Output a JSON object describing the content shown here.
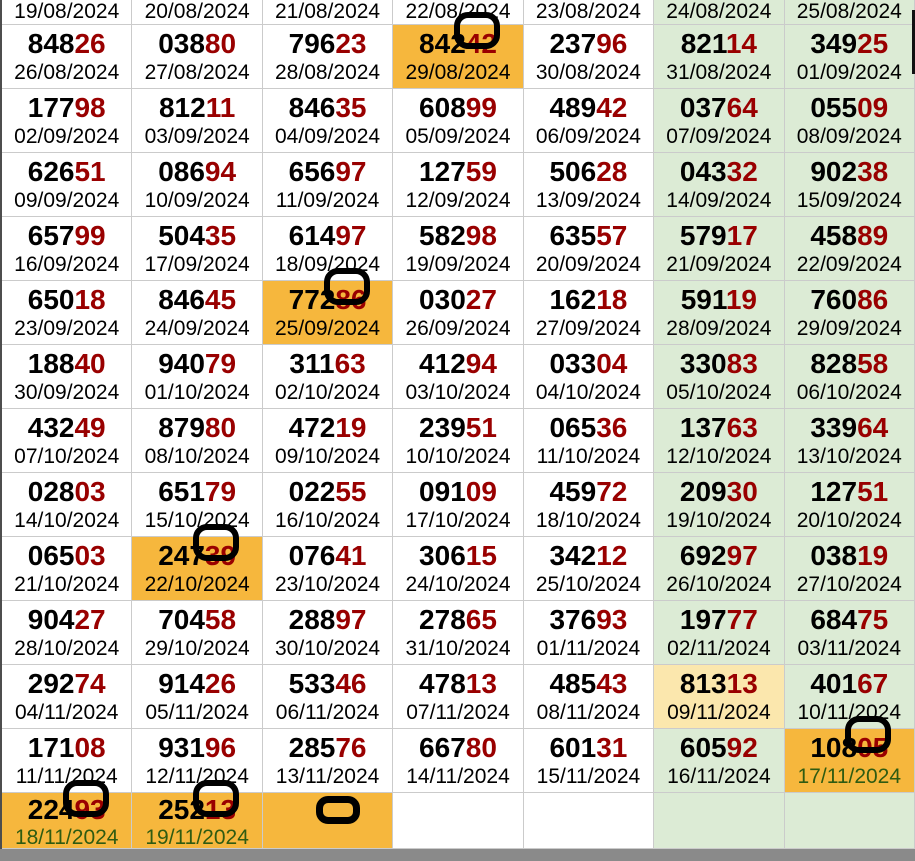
{
  "colors": {
    "orange_highlight": "#F6B73D",
    "weekend_green": "#DCEBD5",
    "yellow_highlight": "#FBE7AD",
    "number_black": "#000000",
    "number_maroon": "#990000",
    "grid_line": "#CBCBCB",
    "bottom_bar_gray": "#8A8A8A",
    "left_border_gray": "#4D4D4D",
    "date_dark_green": "#2F5B11"
  },
  "grid": {
    "top_row": {
      "cells": [
        {
          "date": "19/08/2024",
          "bg": "w"
        },
        {
          "date": "20/08/2024",
          "bg": "w"
        },
        {
          "date": "21/08/2024",
          "bg": "w"
        },
        {
          "date": "22/08/2024",
          "bg": "w"
        },
        {
          "date": "23/08/2024",
          "bg": "w"
        },
        {
          "date": "24/08/2024",
          "bg": "g"
        },
        {
          "date": "25/08/2024",
          "bg": "g"
        }
      ]
    },
    "rows": [
      {
        "cells": [
          {
            "num": "84826",
            "date": "26/08/2024",
            "bg": "w"
          },
          {
            "num": "03880",
            "date": "27/08/2024",
            "bg": "w"
          },
          {
            "num": "79623",
            "date": "28/08/2024",
            "bg": "w"
          },
          {
            "num": "84242",
            "date": "29/08/2024",
            "bg": "o",
            "ring": "digits"
          },
          {
            "num": "23796",
            "date": "30/08/2024",
            "bg": "w"
          },
          {
            "num": "82114",
            "date": "31/08/2024",
            "bg": "g"
          },
          {
            "num": "34925",
            "date": "01/09/2024",
            "bg": "g"
          }
        ]
      },
      {
        "cells": [
          {
            "num": "17798",
            "date": "02/09/2024",
            "bg": "w"
          },
          {
            "num": "81211",
            "date": "03/09/2024",
            "bg": "w"
          },
          {
            "num": "84635",
            "date": "04/09/2024",
            "bg": "w"
          },
          {
            "num": "60899",
            "date": "05/09/2024",
            "bg": "w"
          },
          {
            "num": "48942",
            "date": "06/09/2024",
            "bg": "w"
          },
          {
            "num": "03764",
            "date": "07/09/2024",
            "bg": "g"
          },
          {
            "num": "05509",
            "date": "08/09/2024",
            "bg": "g"
          }
        ]
      },
      {
        "cells": [
          {
            "num": "62651",
            "date": "09/09/2024",
            "bg": "w"
          },
          {
            "num": "08694",
            "date": "10/09/2024",
            "bg": "w"
          },
          {
            "num": "65697",
            "date": "11/09/2024",
            "bg": "w"
          },
          {
            "num": "12759",
            "date": "12/09/2024",
            "bg": "w"
          },
          {
            "num": "50628",
            "date": "13/09/2024",
            "bg": "w"
          },
          {
            "num": "04332",
            "date": "14/09/2024",
            "bg": "g"
          },
          {
            "num": "90238",
            "date": "15/09/2024",
            "bg": "g"
          }
        ]
      },
      {
        "cells": [
          {
            "num": "65799",
            "date": "16/09/2024",
            "bg": "w"
          },
          {
            "num": "50435",
            "date": "17/09/2024",
            "bg": "w"
          },
          {
            "num": "61497",
            "date": "18/09/2024",
            "bg": "w"
          },
          {
            "num": "58298",
            "date": "19/09/2024",
            "bg": "w"
          },
          {
            "num": "63557",
            "date": "20/09/2024",
            "bg": "w"
          },
          {
            "num": "57917",
            "date": "21/09/2024",
            "bg": "g"
          },
          {
            "num": "45889",
            "date": "22/09/2024",
            "bg": "g"
          }
        ]
      },
      {
        "cells": [
          {
            "num": "65018",
            "date": "23/09/2024",
            "bg": "w"
          },
          {
            "num": "84645",
            "date": "24/09/2024",
            "bg": "w"
          },
          {
            "num": "77286",
            "date": "25/09/2024",
            "bg": "o",
            "ring": "digits"
          },
          {
            "num": "03027",
            "date": "26/09/2024",
            "bg": "w"
          },
          {
            "num": "16218",
            "date": "27/09/2024",
            "bg": "w"
          },
          {
            "num": "59119",
            "date": "28/09/2024",
            "bg": "g"
          },
          {
            "num": "76086",
            "date": "29/09/2024",
            "bg": "g"
          }
        ]
      },
      {
        "cells": [
          {
            "num": "18840",
            "date": "30/09/2024",
            "bg": "w"
          },
          {
            "num": "94079",
            "date": "01/10/2024",
            "bg": "w"
          },
          {
            "num": "31163",
            "date": "02/10/2024",
            "bg": "w"
          },
          {
            "num": "41294",
            "date": "03/10/2024",
            "bg": "w"
          },
          {
            "num": "03304",
            "date": "04/10/2024",
            "bg": "w"
          },
          {
            "num": "33083",
            "date": "05/10/2024",
            "bg": "g"
          },
          {
            "num": "82858",
            "date": "06/10/2024",
            "bg": "g"
          }
        ]
      },
      {
        "cells": [
          {
            "num": "43249",
            "date": "07/10/2024",
            "bg": "w"
          },
          {
            "num": "87980",
            "date": "08/10/2024",
            "bg": "w"
          },
          {
            "num": "47219",
            "date": "09/10/2024",
            "bg": "w"
          },
          {
            "num": "23951",
            "date": "10/10/2024",
            "bg": "w"
          },
          {
            "num": "06536",
            "date": "11/10/2024",
            "bg": "w"
          },
          {
            "num": "13763",
            "date": "12/10/2024",
            "bg": "g"
          },
          {
            "num": "33964",
            "date": "13/10/2024",
            "bg": "g"
          }
        ]
      },
      {
        "cells": [
          {
            "num": "02803",
            "date": "14/10/2024",
            "bg": "w"
          },
          {
            "num": "65179",
            "date": "15/10/2024",
            "bg": "w"
          },
          {
            "num": "02255",
            "date": "16/10/2024",
            "bg": "w"
          },
          {
            "num": "09109",
            "date": "17/10/2024",
            "bg": "w"
          },
          {
            "num": "45972",
            "date": "18/10/2024",
            "bg": "w"
          },
          {
            "num": "20930",
            "date": "19/10/2024",
            "bg": "g"
          },
          {
            "num": "12751",
            "date": "20/10/2024",
            "bg": "g"
          }
        ]
      },
      {
        "cells": [
          {
            "num": "06503",
            "date": "21/10/2024",
            "bg": "w"
          },
          {
            "num": "24739",
            "date": "22/10/2024",
            "bg": "o",
            "ring": "digits"
          },
          {
            "num": "07641",
            "date": "23/10/2024",
            "bg": "w"
          },
          {
            "num": "30615",
            "date": "24/10/2024",
            "bg": "w"
          },
          {
            "num": "34212",
            "date": "25/10/2024",
            "bg": "w"
          },
          {
            "num": "69297",
            "date": "26/10/2024",
            "bg": "g"
          },
          {
            "num": "03819",
            "date": "27/10/2024",
            "bg": "g"
          }
        ]
      },
      {
        "cells": [
          {
            "num": "90427",
            "date": "28/10/2024",
            "bg": "w"
          },
          {
            "num": "70458",
            "date": "29/10/2024",
            "bg": "w"
          },
          {
            "num": "28897",
            "date": "30/10/2024",
            "bg": "w"
          },
          {
            "num": "27865",
            "date": "31/10/2024",
            "bg": "w"
          },
          {
            "num": "37693",
            "date": "01/11/2024",
            "bg": "w"
          },
          {
            "num": "19777",
            "date": "02/11/2024",
            "bg": "g"
          },
          {
            "num": "68475",
            "date": "03/11/2024",
            "bg": "g"
          }
        ]
      },
      {
        "cells": [
          {
            "num": "29274",
            "date": "04/11/2024",
            "bg": "w"
          },
          {
            "num": "91426",
            "date": "05/11/2024",
            "bg": "w"
          },
          {
            "num": "53346",
            "date": "06/11/2024",
            "bg": "w"
          },
          {
            "num": "47813",
            "date": "07/11/2024",
            "bg": "w"
          },
          {
            "num": "48543",
            "date": "08/11/2024",
            "bg": "w"
          },
          {
            "num": "81313",
            "date": "09/11/2024",
            "bg": "y"
          },
          {
            "num": "40167",
            "date": "10/11/2024",
            "bg": "g"
          }
        ]
      },
      {
        "cells": [
          {
            "num": "17108",
            "date": "11/11/2024",
            "bg": "w"
          },
          {
            "num": "93196",
            "date": "12/11/2024",
            "bg": "w"
          },
          {
            "num": "28576",
            "date": "13/11/2024",
            "bg": "w"
          },
          {
            "num": "66780",
            "date": "14/11/2024",
            "bg": "w"
          },
          {
            "num": "60131",
            "date": "15/11/2024",
            "bg": "w"
          },
          {
            "num": "60592",
            "date": "16/11/2024",
            "bg": "g"
          },
          {
            "num": "10805",
            "date": "17/11/2024",
            "bg": "o",
            "ring": "digits",
            "date_green": true
          }
        ]
      }
    ],
    "bottom_row": {
      "cells": [
        {
          "num": "22493",
          "date": "18/11/2024",
          "bg": "o",
          "ring": "digits",
          "date_green": true
        },
        {
          "num": "25213",
          "date": "19/11/2024",
          "bg": "o",
          "ring": "digits",
          "date_green": true
        },
        {
          "bg": "o",
          "ring": "empty"
        },
        {
          "bg": "w"
        },
        {
          "bg": "w"
        },
        {
          "bg": "g"
        },
        {
          "bg": "g"
        }
      ]
    },
    "number_style": {
      "black_digits": "first three",
      "maroon_digits": "last two"
    }
  }
}
